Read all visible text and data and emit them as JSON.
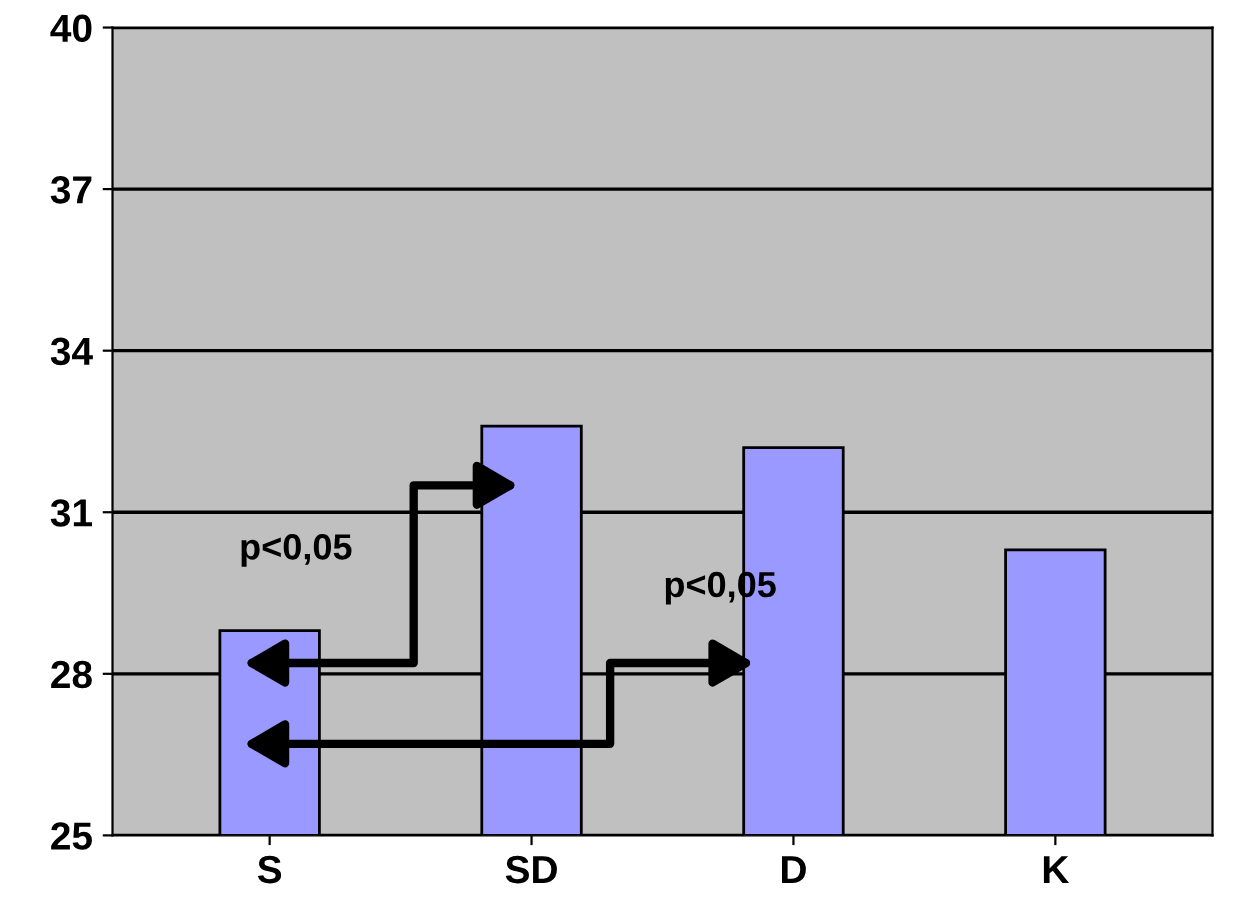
{
  "chart_data": {
    "type": "bar",
    "categories": [
      "S",
      "SD",
      "D",
      "K"
    ],
    "values": [
      28.8,
      32.6,
      32.2,
      30.3
    ],
    "color": "#9999ff",
    "ylim": [
      25,
      40
    ],
    "yticks": [
      25,
      28,
      31,
      34,
      37,
      40
    ],
    "grid": "y",
    "annotations": [
      "p<0,05",
      "p<0,05"
    ]
  }
}
